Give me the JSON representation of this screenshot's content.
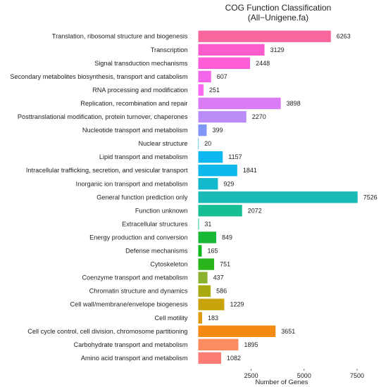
{
  "chart_data": {
    "type": "bar",
    "orientation": "horizontal",
    "title": "COG Function Classification",
    "subtitle": "(All−Unigene.fa)",
    "xlabel": "Number of Genes",
    "ylabel": "",
    "xlim": [
      0,
      7900
    ],
    "xticks": [
      2500,
      5000,
      7500
    ],
    "xtick_labels": [
      "2500",
      "5000",
      "7500"
    ],
    "grid": false,
    "categories": [
      "Translation, ribosomal structure and biogenesis",
      "Transcription",
      "Signal transduction mechanisms",
      "Secondary metabolites biosynthesis, transport and catabolism",
      "RNA processing and modification",
      "Replication, recombination and repair",
      "Posttranslational modification, protein turnover, chaperones",
      "Nucleotide transport and metabolism",
      "Nuclear structure",
      "Lipid transport and metabolism",
      "Intracellular trafficking, secretion, and vesicular transport",
      "Inorganic ion transport and metabolism",
      "General function prediction only",
      "Function unknown",
      "Extracellular structures",
      "Energy production and conversion",
      "Defense mechanisms",
      "Cytoskeleton",
      "Coenzyme transport and metabolism",
      "Chromatin structure and dynamics",
      "Cell wall/membrane/envelope biogenesis",
      "Cell motility",
      "Cell cycle control, cell division, chromosome partitioning",
      "Carbohydrate transport and metabolism",
      "Amino acid transport and metabolism"
    ],
    "values": [
      6263,
      3129,
      2448,
      607,
      251,
      3898,
      2270,
      399,
      20,
      1157,
      1841,
      929,
      7526,
      2072,
      31,
      849,
      165,
      751,
      437,
      586,
      1229,
      183,
      3651,
      1895,
      1082
    ],
    "value_labels": [
      "6263",
      "3129",
      "2448",
      "607",
      "251",
      "3898",
      "2270",
      "399",
      "20",
      "1157",
      "1841",
      "929",
      "7526",
      "2072",
      "31",
      "849",
      "165",
      "751",
      "437",
      "586",
      "1229",
      "183",
      "3651",
      "1895",
      "1082"
    ],
    "colors": [
      "#F7679E",
      "#FB5BCB",
      "#FD5ED8",
      "#F267E9",
      "#F96BF0",
      "#DB7CF7",
      "#B98CF7",
      "#7F96F4",
      "#10B5F1",
      "#0DB7EF",
      "#0DB9EA",
      "#11B9CA",
      "#1ABAB7",
      "#15BE95",
      "#13C48D",
      "#18B836",
      "#0DB718",
      "#2AB51D",
      "#8BB22E",
      "#A8A90E",
      "#C7A30C",
      "#DE9B0D",
      "#F58A12",
      "#FC8B5F",
      "#FC7B74"
    ]
  }
}
